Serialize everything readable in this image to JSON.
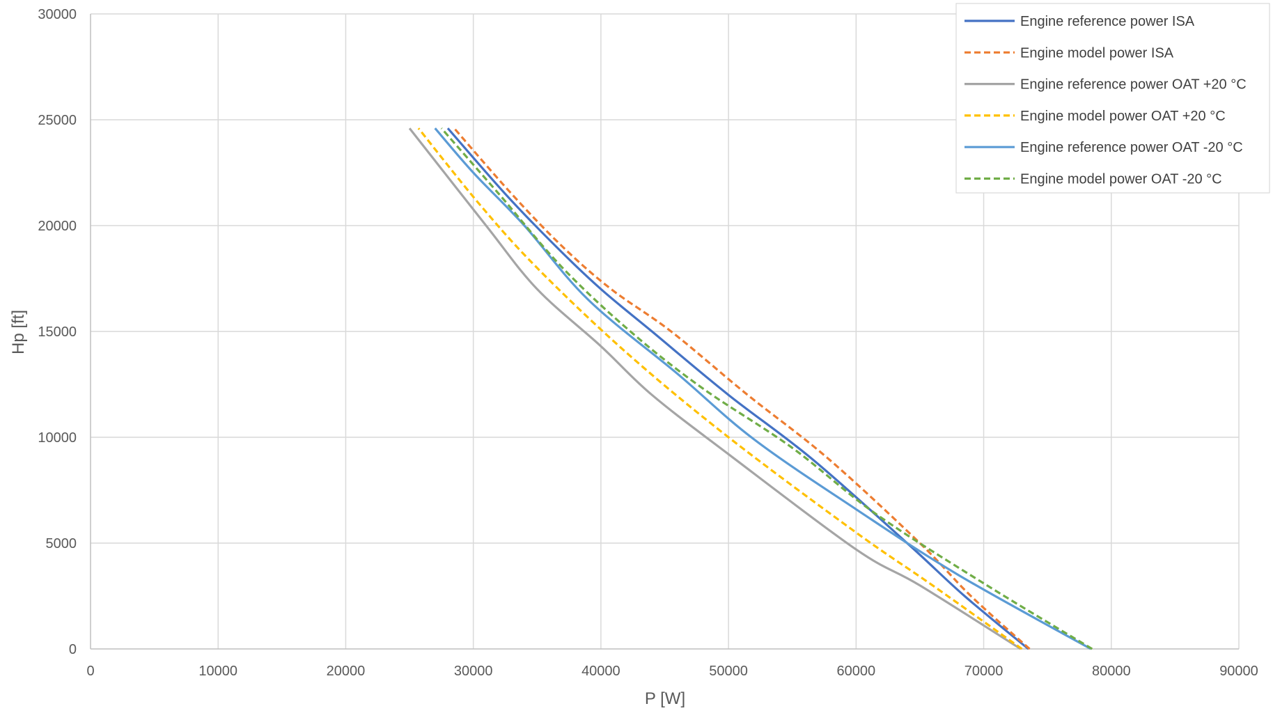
{
  "chart_data": {
    "type": "line",
    "xlabel": "P [W]",
    "ylabel": "Hp [ft]",
    "xlim": [
      0,
      90000
    ],
    "ylim": [
      0,
      30000
    ],
    "xticks": [
      0,
      10000,
      20000,
      30000,
      40000,
      50000,
      60000,
      70000,
      80000,
      90000
    ],
    "yticks": [
      0,
      5000,
      10000,
      15000,
      20000,
      25000,
      30000
    ],
    "xtick_labels": [
      "0",
      "10000",
      "20000",
      "30000",
      "40000",
      "50000",
      "60000",
      "70000",
      "80000",
      "90000"
    ],
    "ytick_labels": [
      "0",
      "5000",
      "10000",
      "15000",
      "20000",
      "25000",
      "30000"
    ],
    "grid": true,
    "legend_position": "top-right",
    "series": [
      {
        "name": "Engine reference power ISA",
        "color": "#4472C4",
        "dash": "solid",
        "points": [
          [
            73500,
            0
          ],
          [
            68500,
            2500
          ],
          [
            64000,
            5000
          ],
          [
            56500,
            9000
          ],
          [
            50000,
            12000
          ],
          [
            44000,
            15000
          ],
          [
            40000,
            17000
          ],
          [
            36500,
            19000
          ],
          [
            32500,
            21500
          ],
          [
            28000,
            24600
          ]
        ]
      },
      {
        "name": "Engine model power ISA",
        "color": "#ED7D31",
        "dash": "dashed",
        "points": [
          [
            73600,
            0
          ],
          [
            69000,
            2500
          ],
          [
            65000,
            5000
          ],
          [
            57800,
            9000
          ],
          [
            51500,
            12000
          ],
          [
            45500,
            15000
          ],
          [
            40800,
            17000
          ],
          [
            37000,
            19000
          ],
          [
            33000,
            21500
          ],
          [
            28500,
            24600
          ]
        ]
      },
      {
        "name": "Engine reference power OAT +20 °C",
        "color": "#A5A5A5",
        "dash": "solid",
        "points": [
          [
            72900,
            0
          ],
          [
            65000,
            3000
          ],
          [
            60000,
            4700
          ],
          [
            50000,
            9200
          ],
          [
            44000,
            12000
          ],
          [
            40000,
            14300
          ],
          [
            35000,
            17000
          ],
          [
            31000,
            20000
          ],
          [
            25000,
            24600
          ]
        ]
      },
      {
        "name": "Engine model power OAT +20 °C",
        "color": "#FFC000",
        "dash": "dashed",
        "points": [
          [
            73000,
            0
          ],
          [
            66000,
            3000
          ],
          [
            60000,
            5500
          ],
          [
            50000,
            10000
          ],
          [
            42000,
            14000
          ],
          [
            35000,
            18000
          ],
          [
            30500,
            21000
          ],
          [
            25700,
            24600
          ]
        ]
      },
      {
        "name": "Engine reference power OAT -20 °C",
        "color": "#5B9BD5",
        "dash": "solid",
        "points": [
          [
            78400,
            0
          ],
          [
            68000,
            3500
          ],
          [
            60000,
            6600
          ],
          [
            52000,
            9900
          ],
          [
            46000,
            13000
          ],
          [
            39000,
            16500
          ],
          [
            34000,
            20000
          ],
          [
            30000,
            22500
          ],
          [
            27000,
            24600
          ]
        ]
      },
      {
        "name": "Engine model power OAT -20 °C",
        "color": "#70AD47",
        "dash": "dashed",
        "points": [
          [
            78500,
            0
          ],
          [
            70000,
            3100
          ],
          [
            61500,
            6400
          ],
          [
            55000,
            9500
          ],
          [
            48000,
            12300
          ],
          [
            42500,
            14900
          ],
          [
            37000,
            18000
          ],
          [
            32000,
            21500
          ],
          [
            27500,
            24600
          ]
        ]
      }
    ]
  }
}
